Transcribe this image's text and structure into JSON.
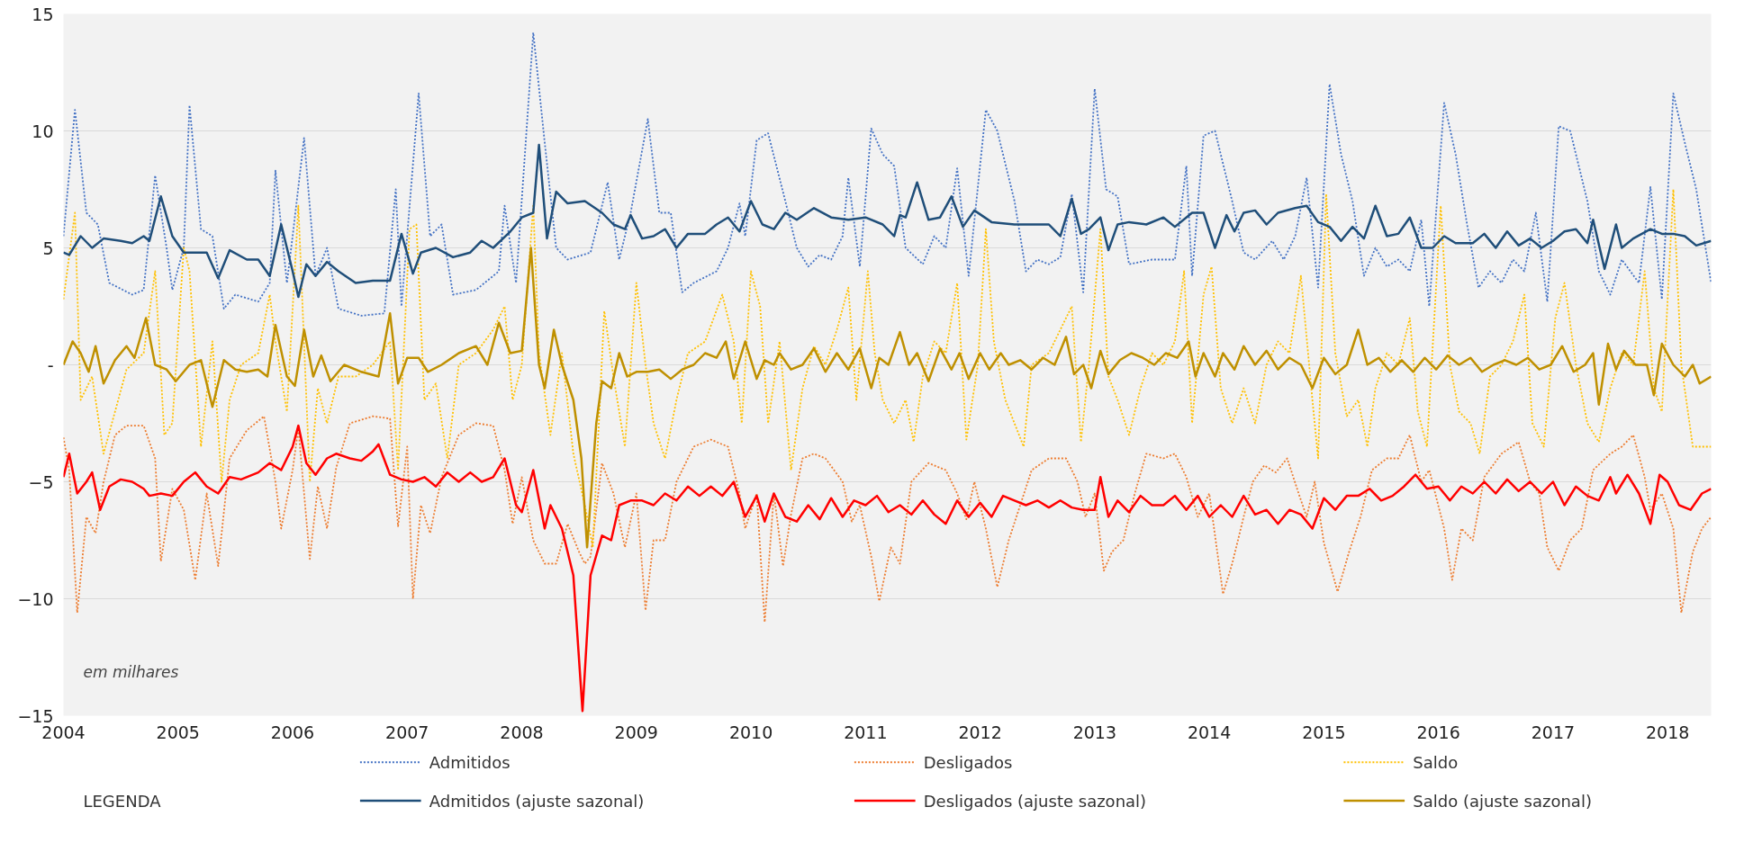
{
  "chart_data": {
    "type": "line",
    "annotations": [
      "em milhares"
    ],
    "legend_title": "LEGENDA",
    "legend": "bottom",
    "grid": "y",
    "xlim": [
      2004,
      2018.38
    ],
    "xticks": [
      2004,
      2005,
      2006,
      2007,
      2008,
      2009,
      2010,
      2011,
      2012,
      2013,
      2014,
      2015,
      2016,
      2017,
      2018
    ],
    "ylim": [
      -15,
      15
    ],
    "yticks": [
      -15,
      -10,
      -5,
      {
        "value": 0,
        "label": "-"
      },
      5,
      10,
      15
    ],
    "series": [
      {
        "name": "Admitidos",
        "color": "#4472c4",
        "line_style": "dotted",
        "x": [
          2004.0,
          2004.1,
          2004.2,
          2004.3,
          2004.4,
          2004.6,
          2004.7,
          2004.8,
          2004.9,
          2004.95,
          2005.05,
          2005.1,
          2005.2,
          2005.3,
          2005.4,
          2005.5,
          2005.7,
          2005.8,
          2005.85,
          2005.95,
          2006.0,
          2006.1,
          2006.2,
          2006.3,
          2006.4,
          2006.6,
          2006.8,
          2006.9,
          2006.95,
          2007.1,
          2007.2,
          2007.3,
          2007.4,
          2007.6,
          2007.8,
          2007.85,
          2007.95,
          2008.1,
          2008.2,
          2008.3,
          2008.4,
          2008.6,
          2008.75,
          2008.85,
          2008.95,
          2009.1,
          2009.2,
          2009.3,
          2009.4,
          2009.5,
          2009.7,
          2009.8,
          2009.9,
          2009.95,
          2010.05,
          2010.15,
          2010.3,
          2010.4,
          2010.5,
          2010.6,
          2010.7,
          2010.8,
          2010.85,
          2010.95,
          2011.05,
          2011.15,
          2011.25,
          2011.35,
          2011.5,
          2011.6,
          2011.7,
          2011.8,
          2011.9,
          2012.05,
          2012.15,
          2012.3,
          2012.4,
          2012.5,
          2012.6,
          2012.7,
          2012.8,
          2012.9,
          2013.0,
          2013.1,
          2013.2,
          2013.3,
          2013.5,
          2013.7,
          2013.8,
          2013.85,
          2013.95,
          2014.05,
          2014.2,
          2014.3,
          2014.4,
          2014.55,
          2014.65,
          2014.75,
          2014.85,
          2014.95,
          2015.05,
          2015.15,
          2015.25,
          2015.35,
          2015.45,
          2015.55,
          2015.65,
          2015.75,
          2015.85,
          2015.92,
          2016.05,
          2016.15,
          2016.25,
          2016.35,
          2016.45,
          2016.55,
          2016.65,
          2016.75,
          2016.85,
          2016.95,
          2017.05,
          2017.15,
          2017.3,
          2017.4,
          2017.5,
          2017.6,
          2017.75,
          2017.85,
          2017.95,
          2018.05,
          2018.15,
          2018.25,
          2018.38
        ],
        "values": [
          5.5,
          10.9,
          6.5,
          6,
          3.5,
          3.0,
          3.2,
          8.1,
          5,
          3.2,
          5,
          11.1,
          5.8,
          5.5,
          2.4,
          3,
          2.7,
          3.5,
          8.3,
          3.5,
          5.5,
          9.7,
          3.8,
          5.0,
          2.4,
          2.1,
          2.2,
          7.5,
          2.5,
          11.6,
          5.5,
          6,
          3,
          3.2,
          4,
          6.8,
          3.5,
          14.2,
          9.5,
          5.0,
          4.5,
          4.8,
          7.8,
          4.5,
          6.5,
          10.5,
          6.5,
          6.5,
          3.1,
          3.5,
          4,
          5,
          6.9,
          5.5,
          9.6,
          9.9,
          7,
          5,
          4.2,
          4.7,
          4.5,
          5.5,
          8,
          4.2,
          10.1,
          9,
          8.5,
          5,
          4.3,
          5.5,
          5,
          8.4,
          3.8,
          10.9,
          10,
          7,
          4,
          4.5,
          4.3,
          4.6,
          7.3,
          3.1,
          11.8,
          7.5,
          7.2,
          4.3,
          4.5,
          4.5,
          8.5,
          3.8,
          9.8,
          10,
          7,
          4.8,
          4.5,
          5.3,
          4.5,
          5.5,
          8,
          3.3,
          12,
          9,
          7,
          3.8,
          5,
          4.2,
          4.5,
          4,
          6.2,
          2.5,
          11.2,
          9,
          6,
          3.3,
          4,
          3.5,
          4.5,
          4,
          6.5,
          2.7,
          10.2,
          10,
          7,
          4,
          3,
          4.5,
          3.5,
          7.6,
          2.8,
          11.6,
          9.5,
          7.5,
          3.5
        ]
      },
      {
        "name": "Desligados",
        "color": "#ed7d31",
        "line_style": "dotted",
        "x": [
          2004.0,
          2004.05,
          2004.12,
          2004.2,
          2004.28,
          2004.35,
          2004.45,
          2004.55,
          2004.7,
          2004.8,
          2004.85,
          2004.95,
          2005.05,
          2005.15,
          2005.25,
          2005.35,
          2005.45,
          2005.6,
          2005.75,
          2005.85,
          2005.9,
          2006.0,
          2006.05,
          2006.15,
          2006.22,
          2006.3,
          2006.38,
          2006.5,
          2006.7,
          2006.85,
          2006.92,
          2007.0,
          2007.05,
          2007.12,
          2007.2,
          2007.3,
          2007.45,
          2007.6,
          2007.75,
          2007.85,
          2007.92,
          2008.0,
          2008.1,
          2008.2,
          2008.3,
          2008.4,
          2008.5,
          2008.55,
          2008.6,
          2008.7,
          2008.8,
          2008.9,
          2009.0,
          2009.08,
          2009.15,
          2009.25,
          2009.35,
          2009.5,
          2009.65,
          2009.8,
          2009.9,
          2009.95,
          2010.05,
          2010.12,
          2010.2,
          2010.28,
          2010.35,
          2010.45,
          2010.55,
          2010.65,
          2010.8,
          2010.88,
          2010.95,
          2011.05,
          2011.12,
          2011.22,
          2011.3,
          2011.4,
          2011.55,
          2011.7,
          2011.8,
          2011.88,
          2011.95,
          2012.05,
          2012.15,
          2012.25,
          2012.35,
          2012.45,
          2012.6,
          2012.75,
          2012.85,
          2012.92,
          2013.0,
          2013.08,
          2013.15,
          2013.25,
          2013.35,
          2013.45,
          2013.6,
          2013.7,
          2013.8,
          2013.9,
          2014.0,
          2014.12,
          2014.2,
          2014.3,
          2014.38,
          2014.48,
          2014.58,
          2014.68,
          2014.78,
          2014.85,
          2014.92,
          2015.0,
          2015.12,
          2015.22,
          2015.32,
          2015.42,
          2015.55,
          2015.65,
          2015.75,
          2015.85,
          2015.92,
          2016.05,
          2016.12,
          2016.2,
          2016.3,
          2016.4,
          2016.55,
          2016.7,
          2016.8,
          2016.88,
          2016.95,
          2017.05,
          2017.15,
          2017.25,
          2017.35,
          2017.5,
          2017.6,
          2017.7,
          2017.8,
          2017.85,
          2017.95,
          2018.05,
          2018.12,
          2018.22,
          2018.3,
          2018.38
        ],
        "values": [
          -3.1,
          -4.5,
          -10.6,
          -6.5,
          -7.2,
          -5.0,
          -3.0,
          -2.6,
          -2.6,
          -4.0,
          -8.4,
          -5.3,
          -6.2,
          -9.2,
          -5.5,
          -8.6,
          -4.0,
          -2.8,
          -2.2,
          -5.0,
          -7.0,
          -4.5,
          -2.7,
          -8.3,
          -5.2,
          -7.0,
          -4.4,
          -2.5,
          -2.2,
          -2.3,
          -6.9,
          -3.5,
          -10.0,
          -6.0,
          -7.2,
          -4.8,
          -3.0,
          -2.5,
          -2.6,
          -4.5,
          -6.8,
          -4.8,
          -7.5,
          -8.5,
          -8.5,
          -6.8,
          -8.0,
          -8.5,
          -8.2,
          -4.2,
          -5.5,
          -7.8,
          -5.5,
          -10.5,
          -7.5,
          -7.5,
          -5.0,
          -3.5,
          -3.2,
          -3.5,
          -5.5,
          -7.0,
          -5.5,
          -11.0,
          -5.5,
          -8.6,
          -6.4,
          -4.0,
          -3.8,
          -4.0,
          -5.0,
          -6.7,
          -6.0,
          -8.2,
          -10.1,
          -7.8,
          -8.5,
          -5.0,
          -4.2,
          -4.5,
          -5.5,
          -6.6,
          -5.0,
          -7.0,
          -9.5,
          -7.5,
          -6.0,
          -4.5,
          -4.0,
          -4.0,
          -5.0,
          -6.5,
          -5.5,
          -8.8,
          -8.0,
          -7.5,
          -5.5,
          -3.8,
          -4.0,
          -3.8,
          -4.8,
          -6.5,
          -5.5,
          -9.8,
          -8.5,
          -6.5,
          -5.0,
          -4.3,
          -4.6,
          -4.0,
          -5.5,
          -6.5,
          -5.0,
          -7.6,
          -9.7,
          -8.0,
          -6.5,
          -4.5,
          -4.0,
          -4.0,
          -3.0,
          -5.0,
          -4.5,
          -7.0,
          -9.2,
          -7.0,
          -7.5,
          -4.8,
          -3.8,
          -3.3,
          -5.0,
          -5.5,
          -7.8,
          -8.8,
          -7.5,
          -7.0,
          -4.5,
          -3.8,
          -3.5,
          -3.0,
          -4.8,
          -6.2,
          -5.5,
          -7.0,
          -10.6,
          -8.0,
          -7.0,
          -6.5
        ]
      },
      {
        "name": "Saldo",
        "color": "#ffc000",
        "line_style": "dotted",
        "x": [
          2004.0,
          2004.1,
          2004.15,
          2004.25,
          2004.35,
          2004.45,
          2004.55,
          2004.7,
          2004.8,
          2004.88,
          2004.95,
          2005.05,
          2005.1,
          2005.2,
          2005.3,
          2005.38,
          2005.45,
          2005.55,
          2005.7,
          2005.8,
          2005.85,
          2005.95,
          2006.05,
          2006.15,
          2006.22,
          2006.3,
          2006.4,
          2006.55,
          2006.7,
          2006.85,
          2006.92,
          2007.02,
          2007.08,
          2007.15,
          2007.25,
          2007.35,
          2007.45,
          2007.6,
          2007.75,
          2007.85,
          2007.92,
          2008.0,
          2008.1,
          2008.15,
          2008.25,
          2008.35,
          2008.45,
          2008.55,
          2008.62,
          2008.72,
          2008.8,
          2008.9,
          2009.0,
          2009.08,
          2009.15,
          2009.25,
          2009.35,
          2009.45,
          2009.6,
          2009.75,
          2009.85,
          2009.92,
          2010.0,
          2010.08,
          2010.15,
          2010.25,
          2010.35,
          2010.45,
          2010.55,
          2010.65,
          2010.75,
          2010.85,
          2010.92,
          2011.02,
          2011.08,
          2011.15,
          2011.25,
          2011.35,
          2011.42,
          2011.5,
          2011.6,
          2011.7,
          2011.8,
          2011.88,
          2011.98,
          2012.05,
          2012.12,
          2012.22,
          2012.3,
          2012.38,
          2012.45,
          2012.6,
          2012.7,
          2012.8,
          2012.88,
          2012.95,
          2013.05,
          2013.12,
          2013.2,
          2013.3,
          2013.4,
          2013.5,
          2013.6,
          2013.7,
          2013.78,
          2013.85,
          2013.95,
          2014.02,
          2014.1,
          2014.2,
          2014.3,
          2014.4,
          2014.5,
          2014.6,
          2014.7,
          2014.8,
          2014.9,
          2014.95,
          2015.02,
          2015.1,
          2015.2,
          2015.3,
          2015.38,
          2015.45,
          2015.55,
          2015.65,
          2015.75,
          2015.82,
          2015.9,
          2016.02,
          2016.1,
          2016.18,
          2016.28,
          2016.36,
          2016.45,
          2016.55,
          2016.65,
          2016.75,
          2016.82,
          2016.92,
          2017.02,
          2017.1,
          2017.2,
          2017.3,
          2017.4,
          2017.5,
          2017.6,
          2017.7,
          2017.8,
          2017.88,
          2017.95,
          2018.05,
          2018.12,
          2018.22,
          2018.38
        ],
        "values": [
          2.8,
          6.5,
          -1.5,
          -0.5,
          -3.8,
          -2.0,
          -0.2,
          0.5,
          4.0,
          -3.0,
          -2.5,
          5.0,
          4.0,
          -3.5,
          1.0,
          -5.0,
          -1.5,
          0.0,
          0.5,
          3.0,
          1.0,
          -2.0,
          6.8,
          -5.0,
          -1.0,
          -2.5,
          -0.5,
          -0.5,
          0.0,
          1.0,
          -4.5,
          5.8,
          6.0,
          -1.5,
          -0.8,
          -4.0,
          0.0,
          0.5,
          1.5,
          2.5,
          -1.5,
          0.0,
          6.8,
          0.5,
          -3.0,
          0.5,
          -3.8,
          -6.0,
          -7.8,
          2.3,
          -0.5,
          -3.5,
          3.5,
          0.0,
          -2.5,
          -4.0,
          -1.5,
          0.5,
          1.0,
          3.0,
          1.0,
          -2.5,
          4.0,
          2.5,
          -2.5,
          1.0,
          -4.5,
          -1.0,
          0.8,
          0.0,
          1.5,
          3.3,
          -1.5,
          4.0,
          0.5,
          -1.5,
          -2.5,
          -1.5,
          -3.3,
          -0.5,
          1.0,
          0.5,
          3.5,
          -3.2,
          0.0,
          5.8,
          1.0,
          -1.5,
          -2.5,
          -3.5,
          0.0,
          0.5,
          1.5,
          2.5,
          -3.3,
          0.0,
          5.8,
          -0.5,
          -1.5,
          -3.0,
          -1.0,
          0.5,
          0.0,
          1.0,
          4.0,
          -2.5,
          3.0,
          4.2,
          -1.0,
          -2.5,
          -1.0,
          -2.5,
          0.0,
          1.0,
          0.5,
          3.8,
          -1.5,
          -4.0,
          7.3,
          0.5,
          -2.2,
          -1.5,
          -3.5,
          -1.0,
          0.5,
          0.0,
          2.0,
          -2.0,
          -3.5,
          6.8,
          0.0,
          -2.0,
          -2.5,
          -3.8,
          -0.5,
          0.0,
          1.0,
          3.0,
          -2.5,
          -3.5,
          2.0,
          3.5,
          0.0,
          -2.5,
          -3.3,
          -1.0,
          0.5,
          0.0,
          4.0,
          -1.0,
          -2.0,
          7.5,
          0.0,
          -3.5,
          -3.5
        ]
      },
      {
        "name": "Admitidos (ajuste sazonal)",
        "color": "#1f4e79",
        "line_style": "solid",
        "x": [
          2004.0,
          2004.05,
          2004.15,
          2004.25,
          2004.35,
          2004.5,
          2004.6,
          2004.7,
          2004.75,
          2004.85,
          2004.95,
          2005.05,
          2005.15,
          2005.25,
          2005.35,
          2005.45,
          2005.6,
          2005.7,
          2005.8,
          2005.9,
          2006.0,
          2006.05,
          2006.12,
          2006.2,
          2006.3,
          2006.4,
          2006.55,
          2006.7,
          2006.85,
          2006.95,
          2007.05,
          2007.12,
          2007.25,
          2007.4,
          2007.55,
          2007.65,
          2007.75,
          2007.9,
          2008.0,
          2008.1,
          2008.15,
          2008.22,
          2008.3,
          2008.4,
          2008.55,
          2008.7,
          2008.8,
          2008.9,
          2008.95,
          2009.05,
          2009.15,
          2009.25,
          2009.35,
          2009.45,
          2009.6,
          2009.7,
          2009.8,
          2009.9,
          2010.0,
          2010.1,
          2010.2,
          2010.3,
          2010.4,
          2010.55,
          2010.7,
          2010.85,
          2011.0,
          2011.15,
          2011.25,
          2011.3,
          2011.35,
          2011.45,
          2011.55,
          2011.65,
          2011.75,
          2011.85,
          2011.95,
          2012.1,
          2012.3,
          2012.5,
          2012.6,
          2012.7,
          2012.8,
          2012.88,
          2012.95,
          2013.05,
          2013.12,
          2013.2,
          2013.3,
          2013.45,
          2013.6,
          2013.7,
          2013.85,
          2013.95,
          2014.05,
          2014.15,
          2014.22,
          2014.3,
          2014.4,
          2014.5,
          2014.6,
          2014.75,
          2014.85,
          2014.95,
          2015.05,
          2015.15,
          2015.25,
          2015.35,
          2015.45,
          2015.55,
          2015.65,
          2015.75,
          2015.85,
          2015.95,
          2016.05,
          2016.15,
          2016.3,
          2016.4,
          2016.5,
          2016.6,
          2016.7,
          2016.8,
          2016.9,
          2017.0,
          2017.1,
          2017.2,
          2017.3,
          2017.35,
          2017.45,
          2017.55,
          2017.6,
          2017.7,
          2017.85,
          2017.95,
          2018.05,
          2018.15,
          2018.25,
          2018.38
        ],
        "values": [
          4.8,
          4.7,
          5.5,
          5.0,
          5.4,
          5.3,
          5.2,
          5.5,
          5.3,
          7.2,
          5.5,
          4.8,
          4.8,
          4.8,
          3.7,
          4.9,
          4.5,
          4.5,
          3.8,
          6.0,
          4.0,
          2.9,
          4.3,
          3.8,
          4.4,
          4.0,
          3.5,
          3.6,
          3.6,
          5.6,
          3.9,
          4.8,
          5.0,
          4.6,
          4.8,
          5.3,
          5.0,
          5.7,
          6.3,
          6.5,
          9.4,
          5.4,
          7.4,
          6.9,
          7.0,
          6.5,
          6.0,
          5.8,
          6.4,
          5.4,
          5.5,
          5.8,
          5.0,
          5.6,
          5.6,
          6.0,
          6.3,
          5.7,
          7.0,
          6.0,
          5.8,
          6.5,
          6.2,
          6.7,
          6.3,
          6.2,
          6.3,
          6.0,
          5.5,
          6.4,
          6.3,
          7.8,
          6.2,
          6.3,
          7.2,
          5.9,
          6.6,
          6.1,
          6.0,
          6.0,
          6.0,
          5.5,
          7.1,
          5.6,
          5.8,
          6.3,
          4.9,
          6.0,
          6.1,
          6.0,
          6.3,
          5.9,
          6.5,
          6.5,
          5.0,
          6.4,
          5.7,
          6.5,
          6.6,
          6.0,
          6.5,
          6.7,
          6.8,
          6.1,
          5.9,
          5.3,
          5.9,
          5.4,
          6.8,
          5.5,
          5.6,
          6.3,
          5.0,
          5.0,
          5.5,
          5.2,
          5.2,
          5.6,
          5.0,
          5.7,
          5.1,
          5.4,
          5.0,
          5.3,
          5.7,
          5.8,
          5.2,
          6.2,
          4.1,
          6.0,
          5.0,
          5.4,
          5.8,
          5.6,
          5.6,
          5.5,
          5.1,
          5.3
        ]
      },
      {
        "name": "Desligados (ajuste sazonal)",
        "color": "#ff0000",
        "line_style": "solid",
        "x": [
          2004.0,
          2004.05,
          2004.12,
          2004.2,
          2004.25,
          2004.32,
          2004.4,
          2004.5,
          2004.6,
          2004.7,
          2004.75,
          2004.85,
          2004.95,
          2005.05,
          2005.15,
          2005.25,
          2005.35,
          2005.45,
          2005.55,
          2005.7,
          2005.8,
          2005.9,
          2006.0,
          2006.05,
          2006.12,
          2006.2,
          2006.3,
          2006.38,
          2006.5,
          2006.6,
          2006.7,
          2006.75,
          2006.85,
          2006.95,
          2007.05,
          2007.15,
          2007.25,
          2007.35,
          2007.45,
          2007.55,
          2007.65,
          2007.75,
          2007.85,
          2007.95,
          2008.0,
          2008.1,
          2008.2,
          2008.25,
          2008.35,
          2008.45,
          2008.53,
          2008.6,
          2008.7,
          2008.78,
          2008.85,
          2008.95,
          2009.05,
          2009.15,
          2009.25,
          2009.35,
          2009.45,
          2009.55,
          2009.65,
          2009.75,
          2009.85,
          2009.95,
          2010.05,
          2010.12,
          2010.2,
          2010.3,
          2010.4,
          2010.5,
          2010.6,
          2010.7,
          2010.8,
          2010.9,
          2011.0,
          2011.1,
          2011.2,
          2011.3,
          2011.4,
          2011.5,
          2011.6,
          2011.7,
          2011.8,
          2011.9,
          2012.0,
          2012.1,
          2012.2,
          2012.3,
          2012.4,
          2012.5,
          2012.6,
          2012.7,
          2012.8,
          2012.9,
          2013.0,
          2013.05,
          2013.12,
          2013.2,
          2013.3,
          2013.4,
          2013.5,
          2013.6,
          2013.7,
          2013.8,
          2013.9,
          2014.0,
          2014.1,
          2014.2,
          2014.3,
          2014.4,
          2014.5,
          2014.6,
          2014.7,
          2014.8,
          2014.9,
          2015.0,
          2015.1,
          2015.2,
          2015.3,
          2015.4,
          2015.5,
          2015.6,
          2015.7,
          2015.8,
          2015.9,
          2016.0,
          2016.1,
          2016.2,
          2016.3,
          2016.4,
          2016.5,
          2016.6,
          2016.7,
          2016.8,
          2016.9,
          2017.0,
          2017.1,
          2017.2,
          2017.3,
          2017.4,
          2017.5,
          2017.55,
          2017.65,
          2017.75,
          2017.85,
          2017.93,
          2018.0,
          2018.1,
          2018.2,
          2018.3,
          2018.38
        ],
        "values": [
          -4.8,
          -3.8,
          -5.5,
          -5.0,
          -4.6,
          -6.2,
          -5.2,
          -4.9,
          -5.0,
          -5.3,
          -5.6,
          -5.5,
          -5.6,
          -5.0,
          -4.6,
          -5.2,
          -5.5,
          -4.8,
          -4.9,
          -4.6,
          -4.2,
          -4.5,
          -3.5,
          -2.6,
          -4.2,
          -4.7,
          -4.0,
          -3.8,
          -4.0,
          -4.1,
          -3.7,
          -3.4,
          -4.7,
          -4.9,
          -5.0,
          -4.8,
          -5.2,
          -4.6,
          -5.0,
          -4.6,
          -5.0,
          -4.8,
          -4.0,
          -6.0,
          -6.3,
          -4.5,
          -7.0,
          -6.0,
          -7.0,
          -9.0,
          -14.8,
          -9.0,
          -7.3,
          -7.5,
          -6.0,
          -5.8,
          -5.8,
          -6.0,
          -5.5,
          -5.8,
          -5.2,
          -5.6,
          -5.2,
          -5.6,
          -5.0,
          -6.5,
          -5.6,
          -6.7,
          -5.5,
          -6.5,
          -6.7,
          -6.0,
          -6.6,
          -5.7,
          -6.5,
          -5.8,
          -6.0,
          -5.6,
          -6.3,
          -6.0,
          -6.4,
          -5.8,
          -6.4,
          -6.8,
          -5.8,
          -6.5,
          -5.9,
          -6.5,
          -5.6,
          -5.8,
          -6.0,
          -5.8,
          -6.1,
          -5.8,
          -6.1,
          -6.2,
          -6.2,
          -4.8,
          -6.5,
          -5.8,
          -6.3,
          -5.6,
          -6.0,
          -6.0,
          -5.6,
          -6.2,
          -5.6,
          -6.5,
          -6.0,
          -6.5,
          -5.6,
          -6.4,
          -6.2,
          -6.8,
          -6.2,
          -6.4,
          -7.0,
          -5.7,
          -6.2,
          -5.6,
          -5.6,
          -5.3,
          -5.8,
          -5.6,
          -5.2,
          -4.7,
          -5.3,
          -5.2,
          -5.8,
          -5.2,
          -5.5,
          -5.0,
          -5.5,
          -4.9,
          -5.4,
          -5.0,
          -5.5,
          -5.0,
          -6.0,
          -5.2,
          -5.6,
          -5.8,
          -4.8,
          -5.5,
          -4.7,
          -5.5,
          -6.8,
          -4.7,
          -5.0,
          -6.0,
          -6.2,
          -5.5,
          -5.3
        ]
      },
      {
        "name": "Saldo (ajuste sazonal)",
        "color": "#bf9000",
        "line_style": "solid",
        "x": [
          2004.0,
          2004.08,
          2004.15,
          2004.22,
          2004.28,
          2004.35,
          2004.45,
          2004.55,
          2004.62,
          2004.72,
          2004.8,
          2004.9,
          2004.98,
          2005.1,
          2005.2,
          2005.3,
          2005.4,
          2005.5,
          2005.6,
          2005.7,
          2005.78,
          2005.85,
          2005.95,
          2006.02,
          2006.1,
          2006.18,
          2006.25,
          2006.33,
          2006.45,
          2006.6,
          2006.75,
          2006.85,
          2006.92,
          2007.0,
          2007.1,
          2007.18,
          2007.3,
          2007.45,
          2007.6,
          2007.7,
          2007.8,
          2007.9,
          2008.0,
          2008.08,
          2008.15,
          2008.2,
          2008.28,
          2008.35,
          2008.45,
          2008.52,
          2008.57,
          2008.65,
          2008.7,
          2008.78,
          2008.85,
          2008.92,
          2009.0,
          2009.1,
          2009.2,
          2009.3,
          2009.4,
          2009.5,
          2009.6,
          2009.7,
          2009.78,
          2009.85,
          2009.95,
          2010.05,
          2010.12,
          2010.2,
          2010.25,
          2010.35,
          2010.45,
          2010.55,
          2010.65,
          2010.75,
          2010.85,
          2010.95,
          2011.05,
          2011.12,
          2011.2,
          2011.3,
          2011.38,
          2011.45,
          2011.55,
          2011.65,
          2011.75,
          2011.82,
          2011.9,
          2012.0,
          2012.08,
          2012.18,
          2012.25,
          2012.35,
          2012.45,
          2012.55,
          2012.65,
          2012.75,
          2012.82,
          2012.9,
          2012.97,
          2013.05,
          2013.12,
          2013.22,
          2013.32,
          2013.42,
          2013.52,
          2013.62,
          2013.72,
          2013.82,
          2013.88,
          2013.95,
          2014.05,
          2014.12,
          2014.22,
          2014.3,
          2014.4,
          2014.5,
          2014.6,
          2014.7,
          2014.8,
          2014.9,
          2015.0,
          2015.1,
          2015.2,
          2015.3,
          2015.38,
          2015.48,
          2015.58,
          2015.68,
          2015.78,
          2015.88,
          2015.98,
          2016.08,
          2016.18,
          2016.28,
          2016.38,
          2016.48,
          2016.58,
          2016.68,
          2016.78,
          2016.88,
          2016.98,
          2017.08,
          2017.18,
          2017.28,
          2017.35,
          2017.4,
          2017.48,
          2017.55,
          2017.62,
          2017.72,
          2017.82,
          2017.88,
          2017.95,
          2018.05,
          2018.15,
          2018.22,
          2018.28,
          2018.38
        ],
        "values": [
          0.0,
          1.0,
          0.5,
          -0.3,
          0.8,
          -0.8,
          0.2,
          0.8,
          0.3,
          2.0,
          0.0,
          -0.2,
          -0.7,
          0.0,
          0.2,
          -1.8,
          0.2,
          -0.2,
          -0.3,
          -0.2,
          -0.5,
          1.7,
          -0.5,
          -0.9,
          1.5,
          -0.5,
          0.4,
          -0.7,
          0.0,
          -0.3,
          -0.5,
          2.2,
          -0.8,
          0.3,
          0.3,
          -0.3,
          0.0,
          0.5,
          0.8,
          0.0,
          1.8,
          0.5,
          0.6,
          5.0,
          0.0,
          -1.0,
          1.5,
          0.0,
          -1.5,
          -4.0,
          -7.8,
          -2.5,
          -0.7,
          -1.0,
          0.5,
          -0.5,
          -0.3,
          -0.3,
          -0.2,
          -0.6,
          -0.2,
          0.0,
          0.5,
          0.3,
          1.0,
          -0.6,
          1.0,
          -0.6,
          0.2,
          0.0,
          0.5,
          -0.2,
          0.0,
          0.7,
          -0.3,
          0.5,
          -0.2,
          0.7,
          -1.0,
          0.3,
          0.0,
          1.4,
          0.0,
          0.5,
          -0.7,
          0.7,
          -0.2,
          0.5,
          -0.6,
          0.5,
          -0.2,
          0.5,
          0.0,
          0.2,
          -0.2,
          0.3,
          0.0,
          1.2,
          -0.4,
          0.0,
          -1.0,
          0.6,
          -0.4,
          0.2,
          0.5,
          0.3,
          0.0,
          0.5,
          0.3,
          1.0,
          -0.5,
          0.5,
          -0.5,
          0.5,
          -0.2,
          0.8,
          0.0,
          0.6,
          -0.2,
          0.3,
          0.0,
          -1.0,
          0.3,
          -0.4,
          0.0,
          1.5,
          0.0,
          0.3,
          -0.3,
          0.2,
          -0.3,
          0.3,
          -0.2,
          0.4,
          0.0,
          0.3,
          -0.3,
          0.0,
          0.2,
          0.0,
          0.3,
          -0.2,
          0.0,
          0.8,
          -0.3,
          0.0,
          0.5,
          -1.7,
          0.9,
          -0.2,
          0.6,
          0.0,
          0.0,
          -1.3,
          0.9,
          0.0,
          -0.5,
          0.0,
          -0.8,
          -0.5
        ]
      }
    ]
  }
}
